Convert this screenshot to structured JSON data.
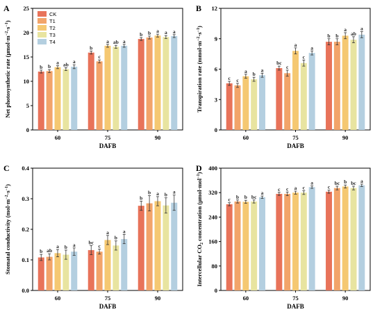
{
  "legend": {
    "entries": [
      "CK",
      "T1",
      "T2",
      "T3",
      "T4"
    ],
    "colors": [
      "#e8735a",
      "#f2a46a",
      "#f5c872",
      "#e8e4a0",
      "#b4cfe0"
    ],
    "placement": "top-left of panel A"
  },
  "chart_data": [
    {
      "panel": "A",
      "type": "bar",
      "ylabel_main": "Net photosynthetic rate (μmol·m",
      "ylabel_sup1": "−2",
      "ylabel_mid": "·s",
      "ylabel_sup2": "−1",
      "ylabel_end": ")",
      "xlabel": "DAFB",
      "ylim": [
        0,
        25
      ],
      "yticks": [
        "0",
        "5",
        "10",
        "15",
        "20",
        "25"
      ],
      "ytick_values": [
        0,
        5,
        10,
        15,
        20,
        25
      ],
      "categories": [
        "60",
        "75",
        "90"
      ],
      "series": [
        {
          "name": "CK",
          "values": [
            12.0,
            15.9,
            18.7
          ],
          "errors": [
            0.3,
            0.3,
            0.3
          ],
          "letters": [
            "b",
            "b",
            "b"
          ]
        },
        {
          "name": "T1",
          "values": [
            12.1,
            14.1,
            19.0
          ],
          "errors": [
            0.3,
            0.3,
            0.3
          ],
          "letters": [
            "b",
            "c",
            "b"
          ]
        },
        {
          "name": "T2",
          "values": [
            12.9,
            17.3,
            19.4
          ],
          "errors": [
            0.3,
            0.3,
            0.3
          ],
          "letters": [
            "a",
            "a",
            "a"
          ]
        },
        {
          "name": "T3",
          "values": [
            12.5,
            17.1,
            19.1
          ],
          "errors": [
            0.3,
            0.3,
            0.3
          ],
          "letters": [
            "ab",
            "ab",
            "a"
          ]
        },
        {
          "name": "T4",
          "values": [
            13.0,
            17.3,
            19.3
          ],
          "errors": [
            0.4,
            0.3,
            0.3
          ],
          "letters": [
            "a",
            "a",
            "a"
          ]
        }
      ]
    },
    {
      "panel": "B",
      "type": "bar",
      "ylabel_main": "Transpiration rate (mmol·m",
      "ylabel_sup1": "−2",
      "ylabel_mid": "·s",
      "ylabel_sup2": "−1",
      "ylabel_end": ")",
      "xlabel": "DAFB",
      "ylim": [
        0,
        12
      ],
      "yticks": [
        "0",
        "3",
        "6",
        "9",
        "12"
      ],
      "ytick_values": [
        0,
        3,
        6,
        9,
        12
      ],
      "categories": [
        "60",
        "75",
        "90"
      ],
      "series": [
        {
          "name": "CK",
          "values": [
            4.6,
            6.1,
            8.7
          ],
          "errors": [
            0.2,
            0.2,
            0.3
          ],
          "letters": [
            "c",
            "bc",
            "b"
          ]
        },
        {
          "name": "T1",
          "values": [
            4.4,
            5.6,
            8.7
          ],
          "errors": [
            0.2,
            0.3,
            0.3
          ],
          "letters": [
            "c",
            "c",
            "b"
          ]
        },
        {
          "name": "T2",
          "values": [
            5.3,
            7.8,
            9.3
          ],
          "errors": [
            0.2,
            0.3,
            0.3
          ],
          "letters": [
            "a",
            "a",
            "a"
          ]
        },
        {
          "name": "T3",
          "values": [
            5.0,
            6.6,
            8.9
          ],
          "errors": [
            0.2,
            0.3,
            0.3
          ],
          "letters": [
            "b",
            "c",
            "ab"
          ]
        },
        {
          "name": "T4",
          "values": [
            5.4,
            7.6,
            9.4
          ],
          "errors": [
            0.2,
            0.2,
            0.3
          ],
          "letters": [
            "a",
            "a",
            "a"
          ]
        }
      ]
    },
    {
      "panel": "C",
      "type": "bar",
      "ylabel_main": "Stomatal conductivity (mol·m",
      "ylabel_sup1": "−2",
      "ylabel_mid": "·s",
      "ylabel_sup2": "−1",
      "ylabel_end": ")",
      "xlabel": "DAFB",
      "ylim": [
        0,
        0.4
      ],
      "yticks": [
        "0.0",
        "0.1",
        "0.2",
        "0.3",
        "0.4"
      ],
      "ytick_values": [
        0,
        0.1,
        0.2,
        0.3,
        0.4
      ],
      "categories": [
        "60",
        "75",
        "90"
      ],
      "series": [
        {
          "name": "CK",
          "values": [
            0.108,
            0.132,
            0.277
          ],
          "errors": [
            0.01,
            0.015,
            0.015
          ],
          "letters": [
            "b",
            "bc",
            "b"
          ]
        },
        {
          "name": "T1",
          "values": [
            0.11,
            0.127,
            0.285
          ],
          "errors": [
            0.01,
            0.008,
            0.025
          ],
          "letters": [
            "ab",
            "c",
            "b"
          ]
        },
        {
          "name": "T2",
          "values": [
            0.122,
            0.165,
            0.292
          ],
          "errors": [
            0.012,
            0.015,
            0.015
          ],
          "letters": [
            "a",
            "a",
            "a"
          ]
        },
        {
          "name": "T3",
          "values": [
            0.117,
            0.147,
            0.278
          ],
          "errors": [
            0.015,
            0.015,
            0.025
          ],
          "letters": [
            "b",
            "b",
            "b"
          ]
        },
        {
          "name": "T4",
          "values": [
            0.127,
            0.168,
            0.287
          ],
          "errors": [
            0.012,
            0.015,
            0.025
          ],
          "letters": [
            "a",
            "a",
            "a"
          ]
        }
      ]
    },
    {
      "panel": "D",
      "type": "bar",
      "ylabel_main": "Intercellular CO",
      "ylabel_sub": "2",
      "ylabel_mid": " concentration (μmol·mol",
      "ylabel_sup2": "−1",
      "ylabel_end": ")",
      "xlabel": "DAFB",
      "ylim": [
        0,
        400
      ],
      "yticks": [
        "0",
        "80",
        "160",
        "240",
        "320",
        "400"
      ],
      "ytick_values": [
        0,
        80,
        160,
        240,
        320,
        400
      ],
      "categories": [
        "60",
        "75",
        "90"
      ],
      "series": [
        {
          "name": "CK",
          "values": [
            282,
            316,
            323
          ],
          "errors": [
            5,
            5,
            5
          ],
          "letters": [
            "c",
            "c",
            "c"
          ]
        },
        {
          "name": "T1",
          "values": [
            291,
            316,
            335
          ],
          "errors": [
            5,
            6,
            6
          ],
          "letters": [
            "b",
            "c",
            "bc"
          ]
        },
        {
          "name": "T2",
          "values": [
            290,
            320,
            340
          ],
          "errors": [
            5,
            5,
            5
          ],
          "letters": [
            "b",
            "a",
            "b"
          ]
        },
        {
          "name": "T3",
          "values": [
            291,
            320,
            335
          ],
          "errors": [
            5,
            6,
            6
          ],
          "letters": [
            "bc",
            "c",
            "bc"
          ]
        },
        {
          "name": "T4",
          "values": [
            305,
            338,
            344
          ],
          "errors": [
            4,
            4,
            4
          ],
          "letters": [
            "a",
            "a",
            "a"
          ]
        }
      ]
    }
  ]
}
